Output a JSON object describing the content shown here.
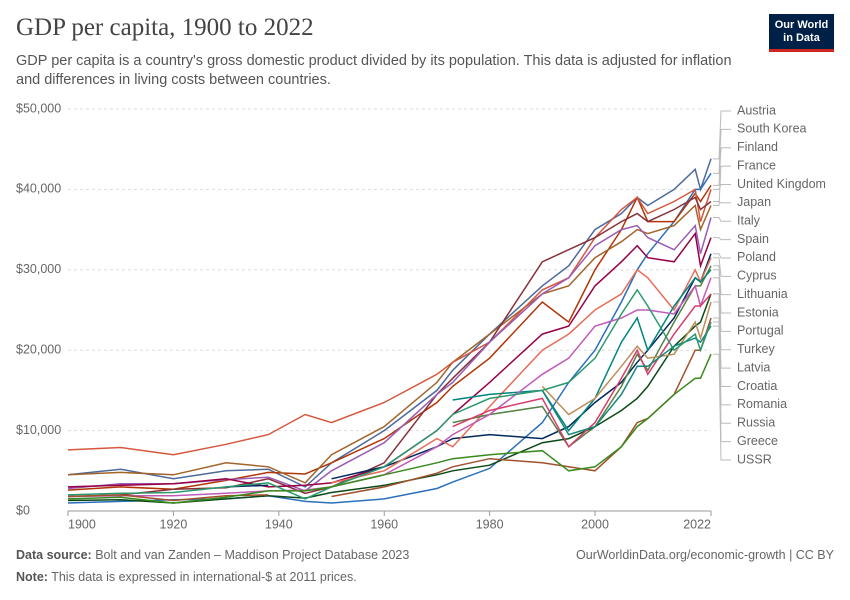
{
  "chart_data": {
    "type": "line",
    "title": "GDP per capita, 1900 to 2022",
    "subtitle": "GDP per capita is a country's gross domestic product divided by its population. This data is adjusted for inflation and differences in living costs between countries.",
    "x": [
      1900,
      1910,
      1920,
      1930,
      1938,
      1945,
      1950,
      1960,
      1970,
      1973,
      1980,
      1990,
      1995,
      2000,
      2005,
      2008,
      2010,
      2015,
      2019,
      2020,
      2022
    ],
    "xlim": [
      1900,
      2022
    ],
    "xticks": [
      1900,
      1920,
      1940,
      1960,
      1980,
      2000,
      2022
    ],
    "ylim": [
      0,
      50000
    ],
    "yticks": [
      {
        "value": 0,
        "label": "$0"
      },
      {
        "value": 10000,
        "label": "$10,000"
      },
      {
        "value": 20000,
        "label": "$20,000"
      },
      {
        "value": 30000,
        "label": "$30,000"
      },
      {
        "value": 40000,
        "label": "$40,000"
      },
      {
        "value": 50000,
        "label": "$50,000"
      }
    ],
    "grid": true,
    "legend": "right",
    "series": [
      {
        "name": "Austria",
        "color": "#4c6a9c",
        "values": [
          4500,
          5200,
          4000,
          5000,
          5200,
          3000,
          6000,
          10000,
          15000,
          17500,
          22000,
          28000,
          30500,
          35000,
          37000,
          39000,
          38000,
          40000,
          42500,
          40000,
          43800
        ]
      },
      {
        "name": "South Korea",
        "color": "#2c6fbb",
        "values": [
          1000,
          1200,
          1400,
          1500,
          1900,
          1200,
          1000,
          1500,
          2800,
          3600,
          5300,
          11000,
          16000,
          20000,
          26000,
          30000,
          32000,
          36000,
          40000,
          40000,
          42000
        ]
      },
      {
        "name": "Finland",
        "color": "#b13507",
        "values": [
          2600,
          3000,
          2700,
          3800,
          4800,
          4600,
          6000,
          9000,
          13500,
          15500,
          19000,
          26000,
          23500,
          30000,
          35000,
          39000,
          36000,
          36000,
          39500,
          38500,
          40500
        ]
      },
      {
        "name": "France",
        "color": "#a2642a",
        "values": [
          4500,
          4800,
          4500,
          6000,
          5500,
          3500,
          7000,
          10500,
          16000,
          18500,
          22000,
          27000,
          28000,
          31500,
          33500,
          35000,
          34500,
          35500,
          38000,
          35000,
          38000
        ]
      },
      {
        "name": "United Kingdom",
        "color": "#d4573e",
        "values": [
          7600,
          7900,
          7000,
          8300,
          9500,
          12000,
          11000,
          13500,
          17000,
          18500,
          21000,
          27500,
          29000,
          34000,
          37500,
          39000,
          37000,
          38500,
          40000,
          36000,
          40000
        ]
      },
      {
        "name": "Japan",
        "color": "#883039",
        "values": [
          1800,
          2000,
          2700,
          2900,
          4000,
          2200,
          3000,
          6000,
          14500,
          16500,
          21000,
          31000,
          32500,
          34000,
          36000,
          37000,
          36000,
          37500,
          39000,
          37500,
          38500
        ]
      },
      {
        "name": "Italy",
        "color": "#9a5cb4",
        "values": [
          2800,
          3400,
          3400,
          3900,
          4200,
          2500,
          5000,
          8500,
          14500,
          16000,
          21000,
          27000,
          29000,
          33000,
          35000,
          35500,
          34000,
          32500,
          35500,
          32000,
          36500
        ]
      },
      {
        "name": "Spain",
        "color": "#970046",
        "values": [
          3000,
          3200,
          3400,
          4000,
          3000,
          3200,
          3500,
          5500,
          10000,
          12000,
          16000,
          22000,
          23000,
          28000,
          31000,
          33000,
          31500,
          31000,
          34500,
          30500,
          34000
        ]
      },
      {
        "name": "Poland",
        "color": "#00295b",
        "values": [
          null,
          null,
          null,
          3000,
          3200,
          null,
          4000,
          5500,
          8000,
          9000,
          9500,
          9000,
          10500,
          13500,
          16000,
          18500,
          20000,
          24000,
          29000,
          28500,
          32000
        ]
      },
      {
        "name": "Cyprus",
        "color": "#e56e5a",
        "values": [
          null,
          null,
          null,
          null,
          null,
          null,
          3500,
          5000,
          9000,
          8000,
          13000,
          20000,
          22000,
          25000,
          27000,
          30000,
          29000,
          25000,
          30000,
          28500,
          31500
        ]
      },
      {
        "name": "Lithuania",
        "color": "#578145",
        "values": [
          null,
          null,
          null,
          null,
          null,
          null,
          null,
          null,
          null,
          11000,
          12000,
          13000,
          8000,
          10500,
          15500,
          19500,
          17500,
          23500,
          28000,
          28000,
          30500
        ]
      },
      {
        "name": "Estonia",
        "color": "#00847e",
        "values": [
          null,
          null,
          null,
          null,
          null,
          null,
          null,
          null,
          null,
          13800,
          14500,
          15000,
          10000,
          14000,
          21000,
          24000,
          20000,
          25500,
          29000,
          28500,
          30000
        ]
      },
      {
        "name": "Portugal",
        "color": "#c15bbb",
        "values": [
          1800,
          1900,
          1900,
          2200,
          2500,
          2600,
          3000,
          4500,
          8000,
          9500,
          12000,
          17000,
          19000,
          23000,
          24000,
          25000,
          25000,
          24500,
          28000,
          25500,
          29000
        ]
      },
      {
        "name": "Turkey",
        "color": "#0b4a18",
        "values": [
          1300,
          1400,
          1000,
          1500,
          1900,
          1600,
          2300,
          3200,
          4500,
          5000,
          5700,
          8500,
          9000,
          10500,
          12500,
          14000,
          15500,
          20500,
          23000,
          23500,
          27000
        ]
      },
      {
        "name": "Latvia",
        "color": "#d73c6a",
        "values": [
          null,
          null,
          null,
          null,
          null,
          null,
          null,
          null,
          null,
          10500,
          12500,
          14000,
          8000,
          11000,
          16500,
          20000,
          17000,
          22000,
          25500,
          25500,
          27000
        ]
      },
      {
        "name": "Croatia",
        "color": "#bc8e5a",
        "values": [
          null,
          null,
          null,
          null,
          null,
          null,
          null,
          null,
          null,
          null,
          null,
          15500,
          12000,
          14000,
          18000,
          20500,
          19000,
          19500,
          23500,
          21500,
          26000
        ]
      },
      {
        "name": "Romania",
        "color": "#a0522d",
        "values": [
          1800,
          2000,
          1300,
          1900,
          2000,
          null,
          1800,
          3000,
          4700,
          5500,
          6500,
          6000,
          5500,
          5000,
          8000,
          11000,
          11500,
          14500,
          20000,
          20000,
          24000
        ]
      },
      {
        "name": "Russia",
        "color": "#18877e",
        "values": [
          null,
          null,
          null,
          null,
          null,
          null,
          null,
          null,
          null,
          null,
          null,
          15000,
          9500,
          10500,
          14500,
          18000,
          18000,
          20500,
          21500,
          21000,
          23000
        ]
      },
      {
        "name": "Greece",
        "color": "#2a9a6e",
        "values": [
          2000,
          2200,
          2300,
          3000,
          3500,
          1500,
          3000,
          5500,
          10000,
          12000,
          14000,
          15000,
          16000,
          19000,
          24500,
          27500,
          25500,
          20000,
          22000,
          20000,
          23500
        ]
      },
      {
        "name": "USSR",
        "color": "#3a8a1e",
        "values": [
          1500,
          1700,
          1000,
          1700,
          2500,
          2500,
          3000,
          4500,
          6000,
          6500,
          7000,
          7500,
          5000,
          5500,
          8000,
          10500,
          11500,
          14500,
          16500,
          16500,
          19500
        ]
      }
    ]
  },
  "logo": [
    "Our World",
    "in Data"
  ],
  "footer": {
    "source_label": "Data source:",
    "source": "Bolt and van Zanden – Maddison Project Database 2023",
    "note_label": "Note:",
    "note": "This data is expressed in international-$ at 2011 prices.",
    "url": "OurWorldinData.org/economic-growth | CC BY"
  }
}
